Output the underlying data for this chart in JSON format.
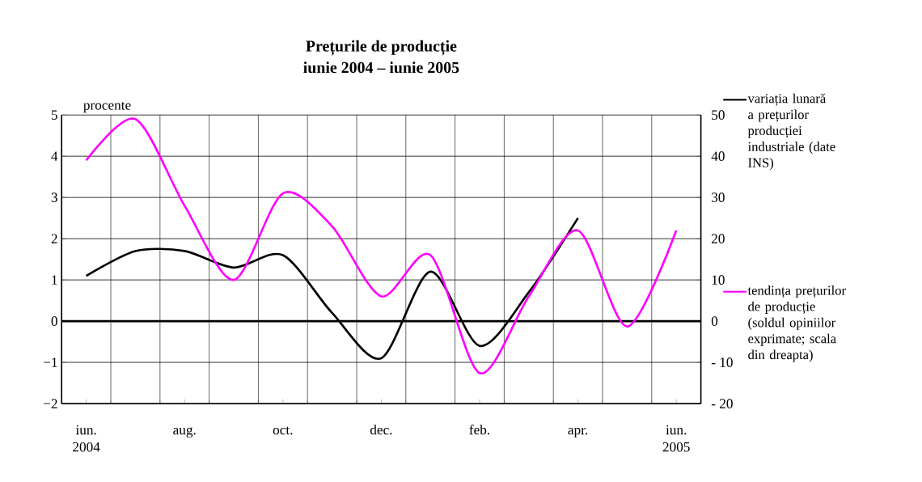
{
  "chart_data": {
    "type": "line",
    "title": "Prețurile de producție",
    "subtitle": "iunie 2004 – iunie 2005",
    "ylabel": "procente",
    "categories": [
      "iun. 2004",
      null,
      "aug.",
      null,
      "oct.",
      null,
      "dec.",
      null,
      "feb.",
      null,
      "apr.",
      null,
      "iun. 2005"
    ],
    "series": [
      {
        "name": "variația lunară a prețurilor producției industriale (date INS)",
        "color": "#000000",
        "values": [
          1.1,
          1.7,
          1.7,
          1.3,
          1.6,
          0.2,
          -0.9,
          1.2,
          -0.6,
          0.7,
          2.5,
          null,
          null
        ]
      },
      {
        "name": "tendința prețurilor de producție (soldul opiniilor exprimate; scala din dreapta)",
        "color": "#ff00ff",
        "axis": "y2",
        "values": [
          39,
          49,
          28,
          10,
          31,
          23,
          6,
          16,
          -12.6,
          6,
          22,
          -1.3,
          22
        ]
      }
    ],
    "ylim": [
      -2,
      5
    ],
    "yticks": [
      {
        "value": -2,
        "label": "−2"
      },
      {
        "value": -1,
        "label": "−1"
      },
      0,
      1,
      2,
      3,
      4,
      5
    ],
    "y2lim": [
      -20,
      50
    ],
    "y2ticks": [
      {
        "value": -20,
        "label": "- 20"
      },
      {
        "value": -10,
        "label": "- 10"
      },
      0,
      10,
      20,
      30,
      40,
      50
    ],
    "ref_lines": [
      {
        "axis": "y",
        "value": 0,
        "color": "#000000"
      }
    ],
    "grid": true,
    "legend": "right",
    "marker": "none"
  }
}
